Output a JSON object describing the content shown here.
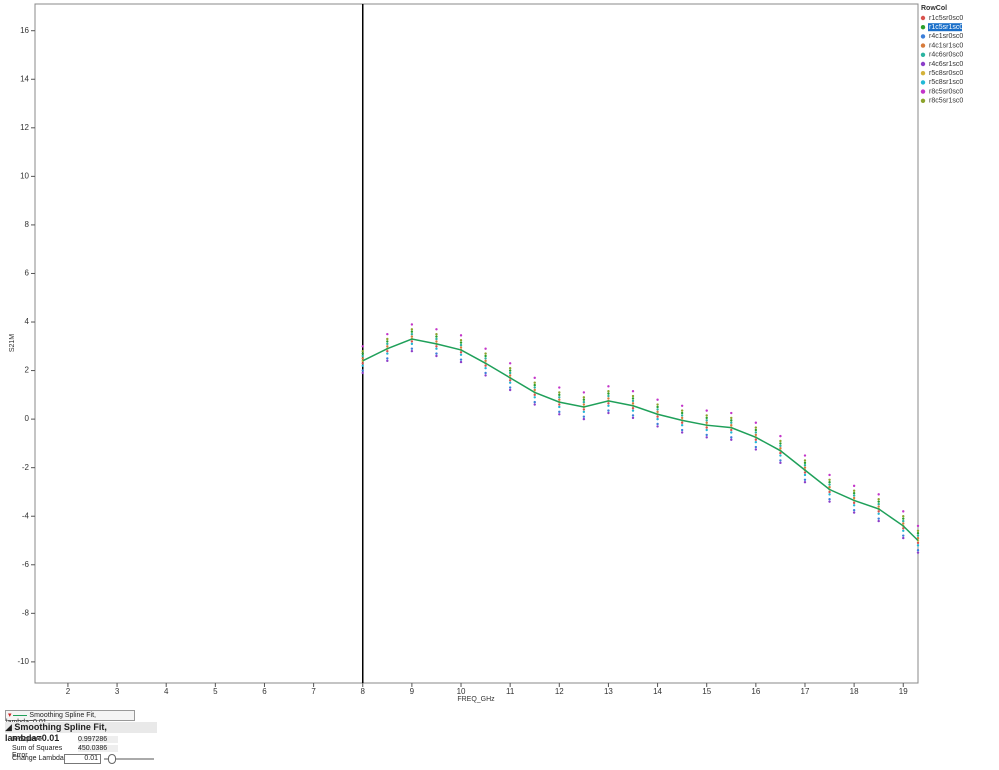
{
  "chart_data": {
    "type": "scatter",
    "x_label": "FREQ_GHz",
    "y_label": "S21M",
    "x": [
      8,
      8.5,
      9,
      9.5,
      10,
      10.5,
      11,
      11.5,
      12,
      12.5,
      13,
      13.5,
      14,
      14.5,
      15,
      15.5,
      16,
      16.5,
      17,
      17.5,
      18,
      18.5,
      19,
      19.3
    ],
    "xlim": [
      1.33,
      19.3
    ],
    "xticks": [
      2,
      3,
      4,
      5,
      6,
      7,
      8,
      9,
      10,
      11,
      12,
      13,
      14,
      15,
      16,
      17,
      18,
      19
    ],
    "ylim": [
      -10.87,
      17.1
    ],
    "yticks": [
      -10,
      -8,
      -6,
      -4,
      -2,
      0,
      2,
      4,
      6,
      8,
      10,
      12,
      14,
      16
    ],
    "ref_line_x": 8,
    "legend_title": "RowCol",
    "legend": "top-right",
    "selected_series": 1,
    "series": [
      {
        "name": "r1c5sr0sc0",
        "color": "#d9534f",
        "values": [
          2.3,
          2.8,
          3.2,
          3.0,
          2.75,
          2.2,
          1.6,
          1.0,
          0.6,
          0.4,
          0.65,
          0.45,
          0.1,
          -0.15,
          -0.35,
          -0.45,
          -0.85,
          -1.4,
          -2.2,
          -3.0,
          -3.45,
          -3.8,
          -4.5,
          -5.1
        ]
      },
      {
        "name": "r1c5sr1sc0",
        "color": "#2ca02c",
        "values": [
          2.7,
          3.2,
          3.6,
          3.4,
          3.15,
          2.6,
          2.0,
          1.4,
          1.0,
          0.8,
          1.05,
          0.85,
          0.5,
          0.25,
          0.05,
          -0.05,
          -0.45,
          -1.0,
          -1.8,
          -2.6,
          -3.05,
          -3.4,
          -4.1,
          -4.7
        ]
      },
      {
        "name": "r4c1sr0sc0",
        "color": "#3d7fd9",
        "values": [
          2.0,
          2.5,
          2.9,
          2.7,
          2.45,
          1.9,
          1.3,
          0.7,
          0.3,
          0.1,
          0.35,
          0.15,
          -0.2,
          -0.45,
          -0.65,
          -0.75,
          -1.15,
          -1.7,
          -2.5,
          -3.3,
          -3.75,
          -4.1,
          -4.8,
          -5.4
        ]
      },
      {
        "name": "r4c1sr1sc0",
        "color": "#d77a3a",
        "values": [
          2.5,
          3.0,
          3.4,
          3.2,
          2.95,
          2.4,
          1.8,
          1.2,
          0.8,
          0.6,
          0.85,
          0.65,
          0.3,
          0.05,
          -0.15,
          -0.25,
          -0.65,
          -1.2,
          -2.0,
          -2.8,
          -3.25,
          -3.6,
          -4.3,
          -4.9
        ]
      },
      {
        "name": "r4c6sr0sc0",
        "color": "#2bb3a0",
        "values": [
          2.6,
          3.1,
          3.5,
          3.3,
          3.05,
          2.5,
          1.9,
          1.3,
          0.9,
          0.7,
          0.95,
          0.75,
          0.4,
          0.15,
          -0.05,
          -0.15,
          -0.55,
          -1.1,
          -1.9,
          -2.7,
          -3.15,
          -3.5,
          -4.2,
          -4.8
        ]
      },
      {
        "name": "r4c6sr1sc0",
        "color": "#8c3ec9",
        "values": [
          1.9,
          2.4,
          2.8,
          2.6,
          2.35,
          1.8,
          1.2,
          0.6,
          0.2,
          0.0,
          0.25,
          0.05,
          -0.3,
          -0.55,
          -0.75,
          -0.85,
          -1.25,
          -1.8,
          -2.6,
          -3.4,
          -3.85,
          -4.2,
          -4.9,
          -5.5
        ]
      },
      {
        "name": "r5c8sr0sc0",
        "color": "#d4b23a",
        "values": [
          2.4,
          2.9,
          3.3,
          3.1,
          2.85,
          2.3,
          1.7,
          1.1,
          0.7,
          0.5,
          0.75,
          0.55,
          0.2,
          -0.05,
          -0.25,
          -0.35,
          -0.75,
          -1.3,
          -2.1,
          -2.9,
          -3.35,
          -3.7,
          -4.4,
          -5.0
        ]
      },
      {
        "name": "r5c8sr1sc0",
        "color": "#21b8d6",
        "values": [
          2.2,
          2.7,
          3.1,
          2.9,
          2.65,
          2.1,
          1.5,
          0.9,
          0.5,
          0.3,
          0.55,
          0.35,
          0.0,
          -0.25,
          -0.45,
          -0.55,
          -0.95,
          -1.5,
          -2.3,
          -3.1,
          -3.55,
          -3.9,
          -4.6,
          -5.2
        ]
      },
      {
        "name": "r8c5sr0sc0",
        "color": "#c334c9",
        "values": [
          3.0,
          3.5,
          3.9,
          3.7,
          3.45,
          2.9,
          2.3,
          1.7,
          1.3,
          1.1,
          1.35,
          1.15,
          0.8,
          0.55,
          0.35,
          0.25,
          -0.15,
          -0.7,
          -1.5,
          -2.3,
          -2.75,
          -3.1,
          -3.8,
          -4.4
        ]
      },
      {
        "name": "r8c5sr1sc0",
        "color": "#8ca32c",
        "values": [
          2.8,
          3.3,
          3.7,
          3.5,
          3.25,
          2.7,
          2.1,
          1.5,
          1.1,
          0.9,
          1.15,
          0.95,
          0.6,
          0.35,
          0.15,
          0.05,
          -0.35,
          -0.9,
          -1.7,
          -2.5,
          -2.95,
          -3.3,
          -4.0,
          -4.6
        ]
      }
    ],
    "fit": {
      "label": "Smoothing Spline Fit, lambda=0.01",
      "color": "#1fa05a",
      "values": [
        2.4,
        2.9,
        3.3,
        3.1,
        2.85,
        2.3,
        1.7,
        1.1,
        0.7,
        0.5,
        0.75,
        0.55,
        0.2,
        -0.05,
        -0.25,
        -0.35,
        -0.75,
        -1.3,
        -2.1,
        -2.9,
        -3.35,
        -3.7,
        -4.4,
        -5.0
      ]
    }
  },
  "report": {
    "rows": [
      [
        "R-Square",
        "0.997286"
      ],
      [
        "Sum of Squares Error",
        "450.0386"
      ]
    ],
    "lambda_label": "Change Lambda:",
    "lambda_value": "0.01"
  }
}
